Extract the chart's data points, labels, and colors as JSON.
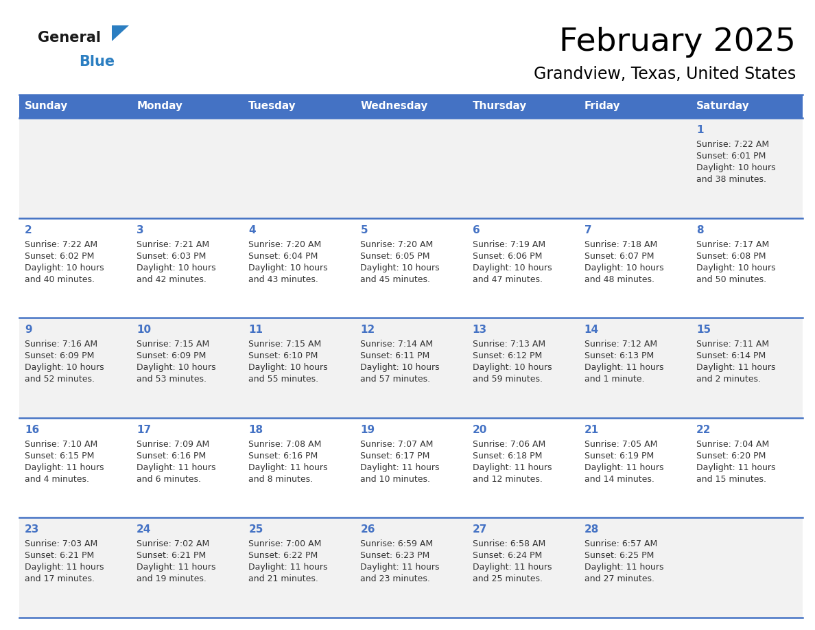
{
  "title": "February 2025",
  "subtitle": "Grandview, Texas, United States",
  "header_bg": "#4472C4",
  "header_text_color": "#FFFFFF",
  "days_of_week": [
    "Sunday",
    "Monday",
    "Tuesday",
    "Wednesday",
    "Thursday",
    "Friday",
    "Saturday"
  ],
  "row_bg_colors": [
    "#F2F2F2",
    "#FFFFFF",
    "#F2F2F2",
    "#FFFFFF",
    "#F2F2F2"
  ],
  "cell_border_color": "#4472C4",
  "day_number_color": "#4472C4",
  "info_text_color": "#333333",
  "logo_general_color": "#1A1A1A",
  "logo_blue_color": "#2B7EC1",
  "logo_triangle_color": "#2B7EC1",
  "calendar_data": [
    [
      null,
      null,
      null,
      null,
      null,
      null,
      {
        "day": "1",
        "sunrise": "7:22 AM",
        "sunset": "6:01 PM",
        "dl1": "Daylight: 10 hours",
        "dl2": "and 38 minutes."
      }
    ],
    [
      {
        "day": "2",
        "sunrise": "7:22 AM",
        "sunset": "6:02 PM",
        "dl1": "Daylight: 10 hours",
        "dl2": "and 40 minutes."
      },
      {
        "day": "3",
        "sunrise": "7:21 AM",
        "sunset": "6:03 PM",
        "dl1": "Daylight: 10 hours",
        "dl2": "and 42 minutes."
      },
      {
        "day": "4",
        "sunrise": "7:20 AM",
        "sunset": "6:04 PM",
        "dl1": "Daylight: 10 hours",
        "dl2": "and 43 minutes."
      },
      {
        "day": "5",
        "sunrise": "7:20 AM",
        "sunset": "6:05 PM",
        "dl1": "Daylight: 10 hours",
        "dl2": "and 45 minutes."
      },
      {
        "day": "6",
        "sunrise": "7:19 AM",
        "sunset": "6:06 PM",
        "dl1": "Daylight: 10 hours",
        "dl2": "and 47 minutes."
      },
      {
        "day": "7",
        "sunrise": "7:18 AM",
        "sunset": "6:07 PM",
        "dl1": "Daylight: 10 hours",
        "dl2": "and 48 minutes."
      },
      {
        "day": "8",
        "sunrise": "7:17 AM",
        "sunset": "6:08 PM",
        "dl1": "Daylight: 10 hours",
        "dl2": "and 50 minutes."
      }
    ],
    [
      {
        "day": "9",
        "sunrise": "7:16 AM",
        "sunset": "6:09 PM",
        "dl1": "Daylight: 10 hours",
        "dl2": "and 52 minutes."
      },
      {
        "day": "10",
        "sunrise": "7:15 AM",
        "sunset": "6:09 PM",
        "dl1": "Daylight: 10 hours",
        "dl2": "and 53 minutes."
      },
      {
        "day": "11",
        "sunrise": "7:15 AM",
        "sunset": "6:10 PM",
        "dl1": "Daylight: 10 hours",
        "dl2": "and 55 minutes."
      },
      {
        "day": "12",
        "sunrise": "7:14 AM",
        "sunset": "6:11 PM",
        "dl1": "Daylight: 10 hours",
        "dl2": "and 57 minutes."
      },
      {
        "day": "13",
        "sunrise": "7:13 AM",
        "sunset": "6:12 PM",
        "dl1": "Daylight: 10 hours",
        "dl2": "and 59 minutes."
      },
      {
        "day": "14",
        "sunrise": "7:12 AM",
        "sunset": "6:13 PM",
        "dl1": "Daylight: 11 hours",
        "dl2": "and 1 minute."
      },
      {
        "day": "15",
        "sunrise": "7:11 AM",
        "sunset": "6:14 PM",
        "dl1": "Daylight: 11 hours",
        "dl2": "and 2 minutes."
      }
    ],
    [
      {
        "day": "16",
        "sunrise": "7:10 AM",
        "sunset": "6:15 PM",
        "dl1": "Daylight: 11 hours",
        "dl2": "and 4 minutes."
      },
      {
        "day": "17",
        "sunrise": "7:09 AM",
        "sunset": "6:16 PM",
        "dl1": "Daylight: 11 hours",
        "dl2": "and 6 minutes."
      },
      {
        "day": "18",
        "sunrise": "7:08 AM",
        "sunset": "6:16 PM",
        "dl1": "Daylight: 11 hours",
        "dl2": "and 8 minutes."
      },
      {
        "day": "19",
        "sunrise": "7:07 AM",
        "sunset": "6:17 PM",
        "dl1": "Daylight: 11 hours",
        "dl2": "and 10 minutes."
      },
      {
        "day": "20",
        "sunrise": "7:06 AM",
        "sunset": "6:18 PM",
        "dl1": "Daylight: 11 hours",
        "dl2": "and 12 minutes."
      },
      {
        "day": "21",
        "sunrise": "7:05 AM",
        "sunset": "6:19 PM",
        "dl1": "Daylight: 11 hours",
        "dl2": "and 14 minutes."
      },
      {
        "day": "22",
        "sunrise": "7:04 AM",
        "sunset": "6:20 PM",
        "dl1": "Daylight: 11 hours",
        "dl2": "and 15 minutes."
      }
    ],
    [
      {
        "day": "23",
        "sunrise": "7:03 AM",
        "sunset": "6:21 PM",
        "dl1": "Daylight: 11 hours",
        "dl2": "and 17 minutes."
      },
      {
        "day": "24",
        "sunrise": "7:02 AM",
        "sunset": "6:21 PM",
        "dl1": "Daylight: 11 hours",
        "dl2": "and 19 minutes."
      },
      {
        "day": "25",
        "sunrise": "7:00 AM",
        "sunset": "6:22 PM",
        "dl1": "Daylight: 11 hours",
        "dl2": "and 21 minutes."
      },
      {
        "day": "26",
        "sunrise": "6:59 AM",
        "sunset": "6:23 PM",
        "dl1": "Daylight: 11 hours",
        "dl2": "and 23 minutes."
      },
      {
        "day": "27",
        "sunrise": "6:58 AM",
        "sunset": "6:24 PM",
        "dl1": "Daylight: 11 hours",
        "dl2": "and 25 minutes."
      },
      {
        "day": "28",
        "sunrise": "6:57 AM",
        "sunset": "6:25 PM",
        "dl1": "Daylight: 11 hours",
        "dl2": "and 27 minutes."
      },
      null
    ]
  ]
}
